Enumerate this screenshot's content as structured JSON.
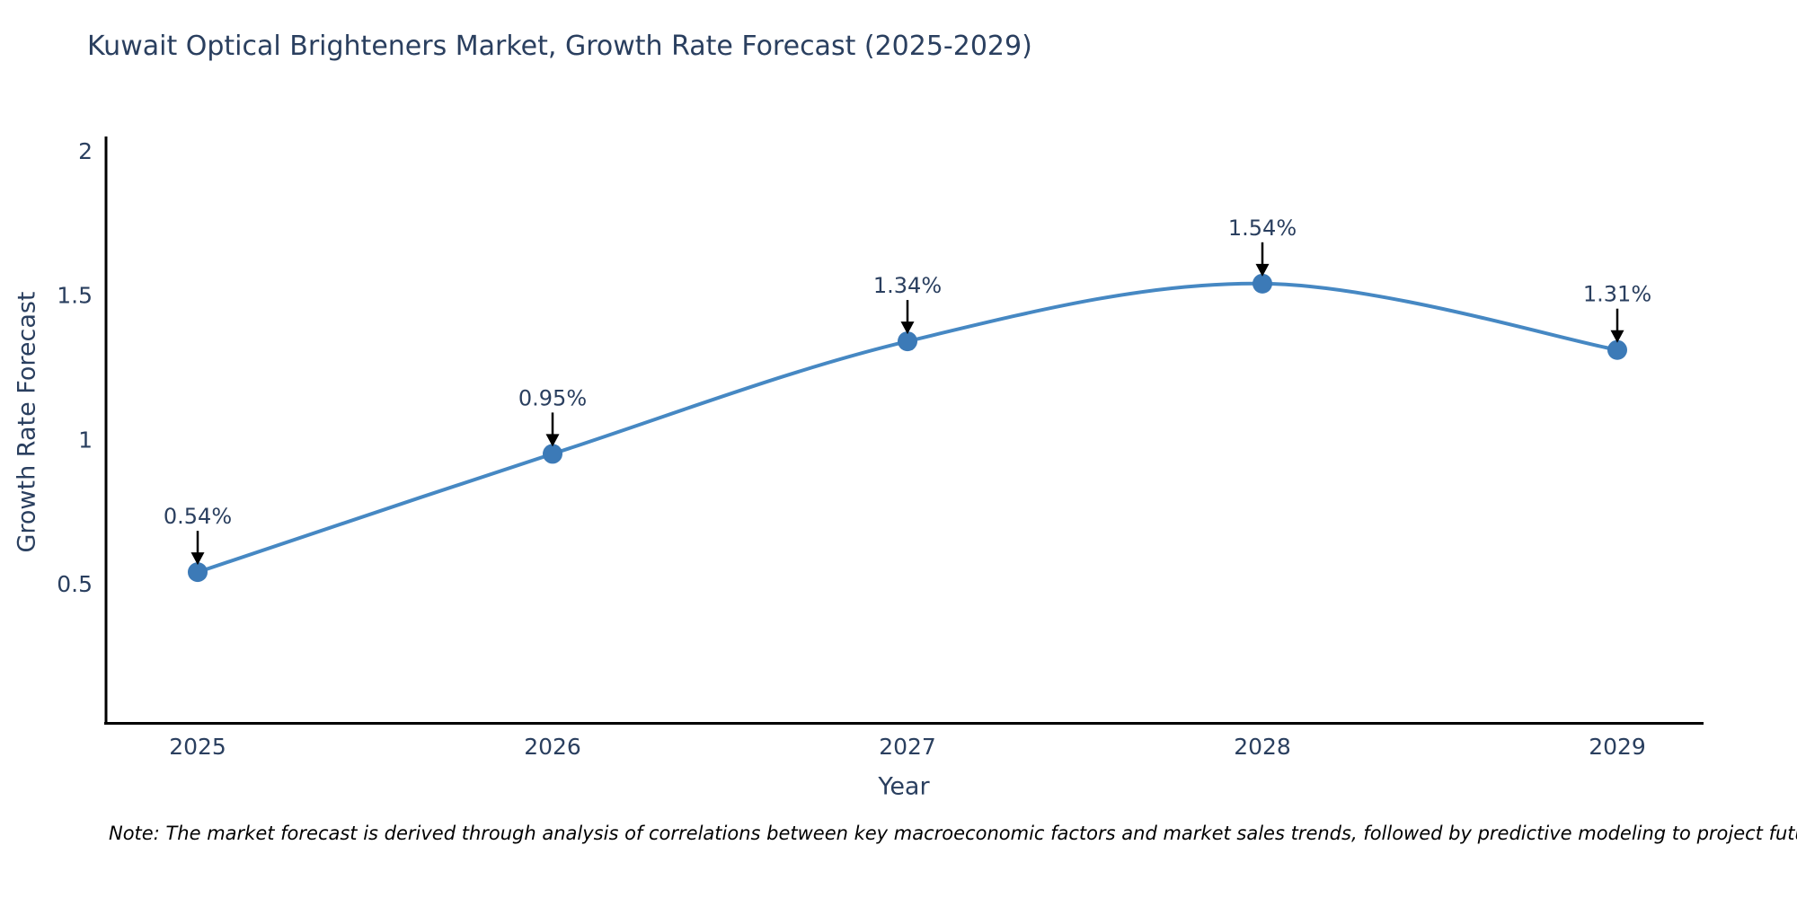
{
  "page": {
    "background": "#ffffff",
    "text_color": "#2a3f5f"
  },
  "chart_data": {
    "type": "line",
    "line_shape": "spline",
    "title": "Kuwait Optical Brighteners Market, Growth Rate Forecast (2025-2029)",
    "categories": [
      "2025",
      "2026",
      "2027",
      "2028",
      "2029"
    ],
    "series": [
      {
        "name": "Growth Rate Forecast",
        "values": [
          0.54,
          0.95,
          1.34,
          1.54,
          1.31
        ]
      }
    ],
    "point_labels": [
      "0.54%",
      "0.95%",
      "1.34%",
      "1.54%",
      "1.31%"
    ],
    "xlabel": "Year",
    "ylabel": "Growth Rate Forecast",
    "ylim": [
      0,
      2
    ],
    "yticks": [
      "0.5",
      "1",
      "1.5",
      "2"
    ],
    "ytick_values": [
      0.5,
      1,
      1.5,
      2
    ],
    "grid": false,
    "legend_position": "none",
    "line_color": "#4688c3",
    "marker_color": "#3c7ab7",
    "axis_color": "#000000",
    "annotation_arrow_color": "#000000",
    "annotation_text_color": "#2a3f5f"
  },
  "note": {
    "text": "Note: The market forecast is derived through analysis of correlations between key macroeconomic factors and market sales trends, followed by predictive modeling to project future sales"
  }
}
